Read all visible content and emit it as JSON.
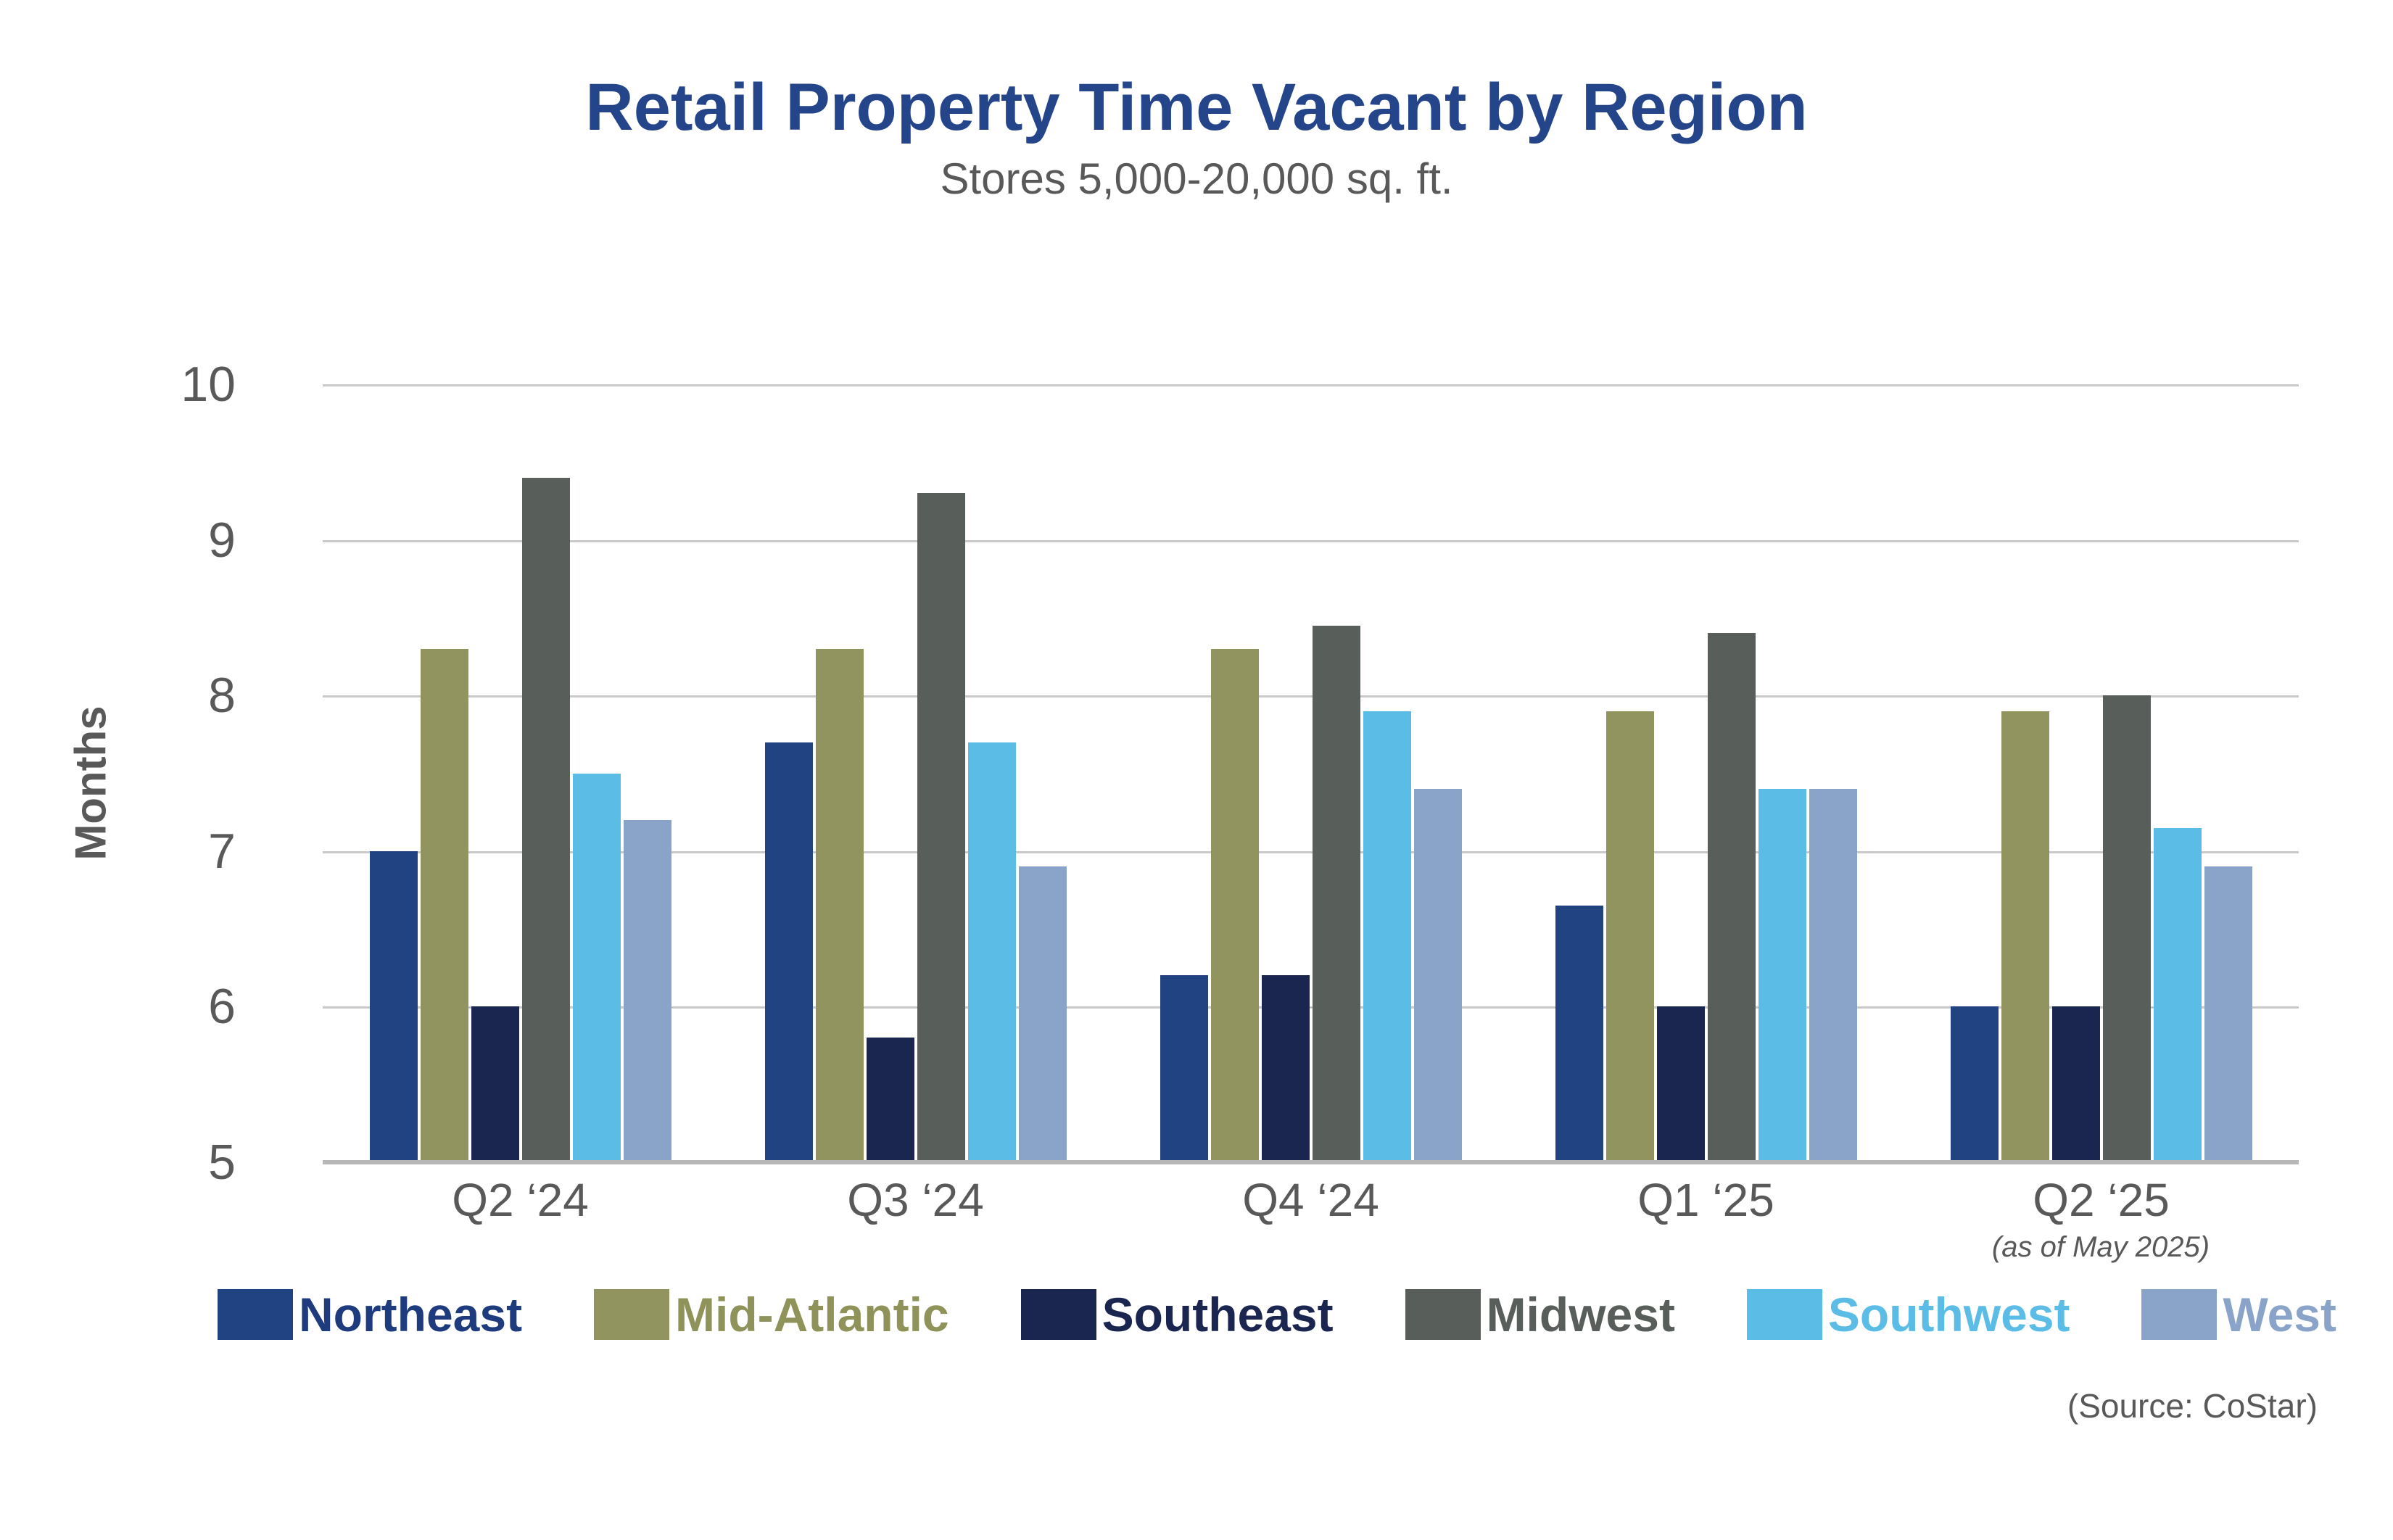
{
  "header": {
    "title": "Retail Property Time Vacant by Region",
    "subtitle": "Stores 5,000-20,000 sq. ft."
  },
  "notes": {
    "as_of": "(as of May 2025)",
    "source": "(Source: CoStar)"
  },
  "colors": {
    "title_text": "#25458B",
    "axis_text": "#595959",
    "gridline": "#c9c9c9",
    "axis_line": "#b7b7b7",
    "background": "#ffffff"
  },
  "chart_data": {
    "type": "bar",
    "title": "Retail Property Time Vacant by Region",
    "subtitle": "Stores 5,000-20,000 sq. ft.",
    "xlabel": "",
    "ylabel": "Months",
    "ylim": [
      5,
      10
    ],
    "yticks": [
      5,
      6,
      7,
      8,
      9,
      10
    ],
    "grid": true,
    "legend_position": "bottom",
    "categories": [
      "Q2 ‘24",
      "Q3 ‘24",
      "Q4 ‘24",
      "Q1 ‘25",
      "Q2 ‘25"
    ],
    "series": [
      {
        "name": "Northeast",
        "color": "#214382",
        "text_color": "#1E3C7D",
        "values": [
          7.0,
          7.7,
          6.2,
          6.65,
          6.0
        ]
      },
      {
        "name": "Mid-Atlantic",
        "color": "#91945E",
        "text_color": "#8F9259",
        "values": [
          8.3,
          8.3,
          8.3,
          7.9,
          7.9
        ]
      },
      {
        "name": "Southeast",
        "color": "#1A2650",
        "text_color": "#1A2650",
        "values": [
          6.0,
          5.8,
          6.2,
          6.0,
          6.0
        ]
      },
      {
        "name": "Midwest",
        "color": "#585F5A",
        "text_color": "#585F5A",
        "values": [
          9.4,
          9.3,
          8.45,
          8.4,
          8.0
        ]
      },
      {
        "name": "Southwest",
        "color": "#5BBDE6",
        "text_color": "#5BBDE6",
        "values": [
          7.5,
          7.7,
          7.9,
          7.4,
          7.15
        ]
      },
      {
        "name": "West",
        "color": "#8AA4C9",
        "text_color": "#8AA4C9",
        "values": [
          7.2,
          6.9,
          7.4,
          7.4,
          6.9
        ]
      }
    ]
  }
}
